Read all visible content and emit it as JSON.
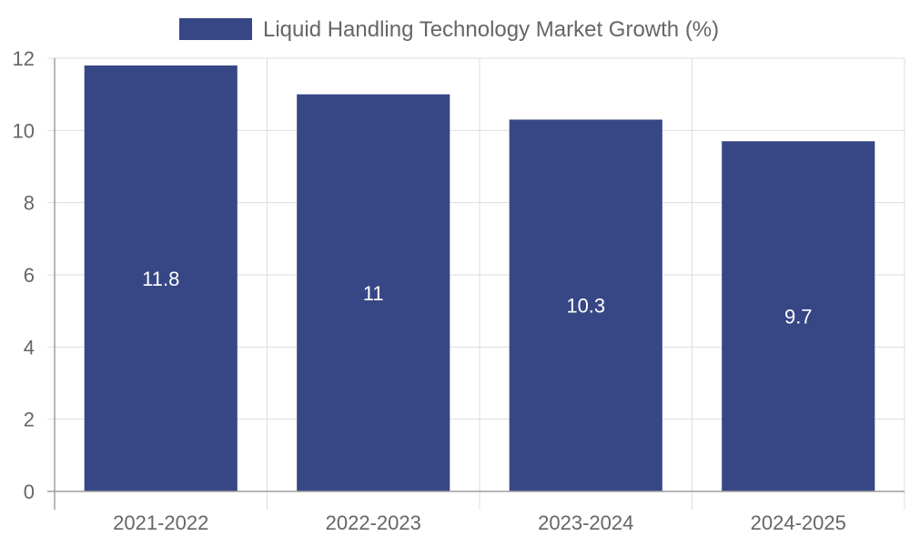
{
  "colors": {
    "bar": "#374785",
    "grid": "#dddddd",
    "axis": "#9e9e9e",
    "tick_text": "#666666",
    "data_label": "#ffffff"
  },
  "chart_data": {
    "type": "bar",
    "categories": [
      "2021-2022",
      "2022-2023",
      "2023-2024",
      "2024-2025"
    ],
    "series": [
      {
        "name": "Liquid Handling Technology Market Growth (%)",
        "values": [
          11.8,
          11,
          10.3,
          9.7
        ],
        "data_labels": [
          "11.8",
          "11",
          "10.3",
          "9.7"
        ]
      }
    ],
    "ylim": [
      0,
      12
    ],
    "yticks": [
      0,
      2,
      4,
      6,
      8,
      10,
      12
    ],
    "ytick_labels": [
      "0",
      "2",
      "4",
      "6",
      "8",
      "10",
      "12"
    ],
    "grid": true,
    "legend_position": "top-center",
    "title": "",
    "xlabel": "",
    "ylabel": ""
  }
}
